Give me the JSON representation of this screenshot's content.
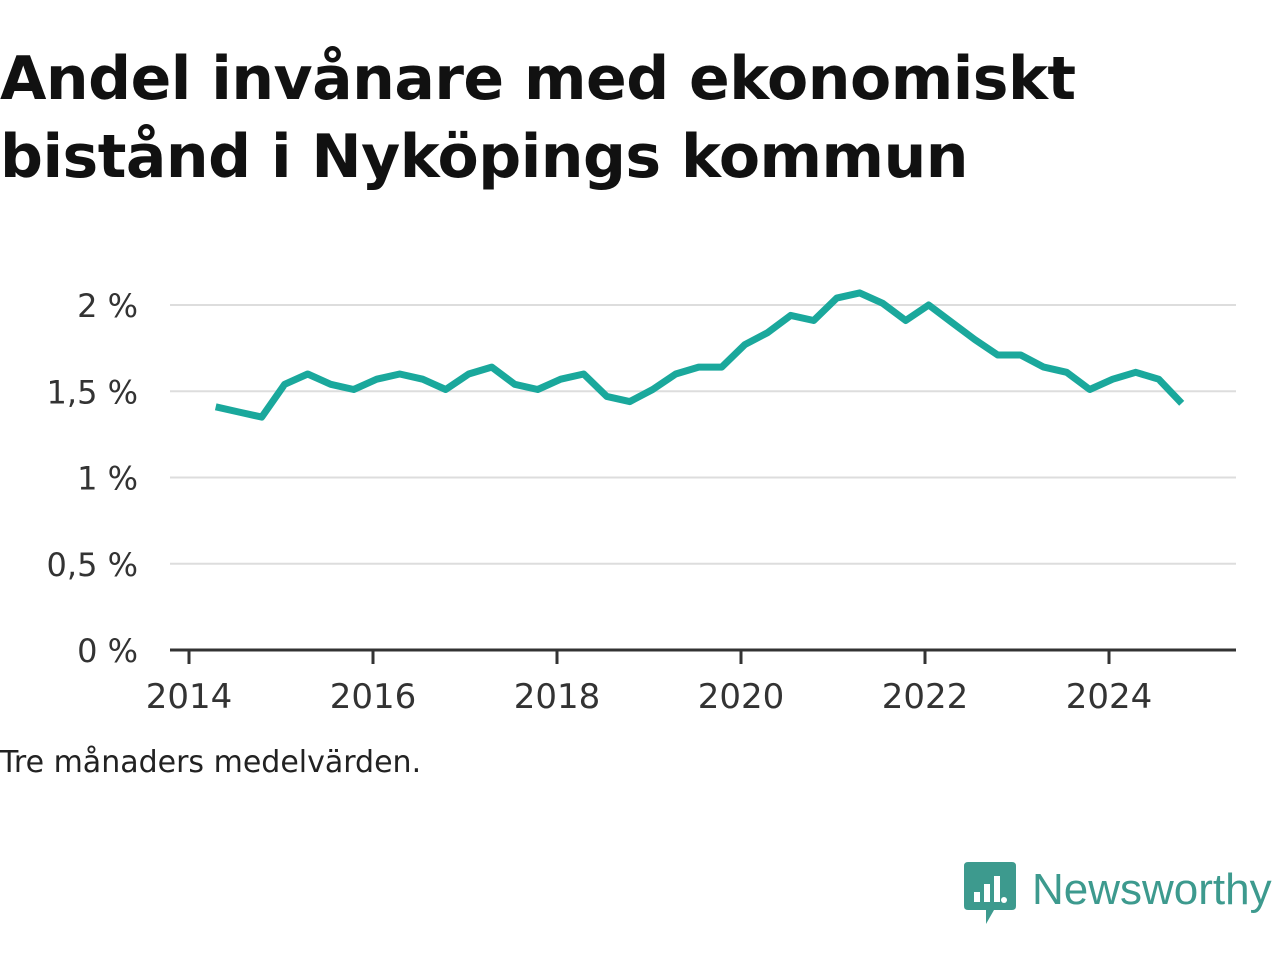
{
  "title": "Andel invånare med ekonomiskt bistånd i Nyköpings kommun",
  "note": "Tre månaders medelvärden.",
  "brand": {
    "name": "Newsworthy",
    "color": "#3d9a8e",
    "icon": "newsworthy-logo-icon"
  },
  "chart_data": {
    "type": "line",
    "title": "Andel invånare med ekonomiskt bistånd i Nyköpings kommun",
    "xlabel": "",
    "ylabel": "",
    "ylim": [
      0,
      2.1
    ],
    "xlim": [
      2013.9,
      2025.7
    ],
    "y_ticks": [
      {
        "value": 0,
        "label": "0 %"
      },
      {
        "value": 0.5,
        "label": "0,5 %"
      },
      {
        "value": 1,
        "label": "1 %"
      },
      {
        "value": 1.5,
        "label": "1,5 %"
      },
      {
        "value": 2,
        "label": "2 %"
      }
    ],
    "x_ticks": [
      {
        "value": 2014,
        "label": "2014"
      },
      {
        "value": 2016,
        "label": "2016"
      },
      {
        "value": 2018,
        "label": "2018"
      },
      {
        "value": 2020,
        "label": "2020"
      },
      {
        "value": 2022,
        "label": "2022"
      },
      {
        "value": 2024,
        "label": "2024"
      }
    ],
    "grid": true,
    "line_color": "#1aa89c",
    "series": [
      {
        "x": [
          2014.29,
          2014.54,
          2014.79,
          2015.04,
          2015.29,
          2015.54,
          2015.79,
          2016.04,
          2016.29,
          2016.54,
          2016.79,
          2017.04,
          2017.29,
          2017.54,
          2017.79,
          2018.04,
          2018.29,
          2018.54,
          2018.79,
          2019.04,
          2019.29,
          2019.54,
          2019.79,
          2020.04,
          2020.29,
          2020.54,
          2020.79,
          2021.04,
          2021.29,
          2021.54,
          2021.79,
          2022.04,
          2022.29,
          2022.54,
          2022.79,
          2023.04,
          2023.29,
          2023.54,
          2023.79,
          2024.04,
          2024.29,
          2024.54,
          2024.79
        ],
        "values": [
          1.41,
          1.38,
          1.35,
          1.54,
          1.6,
          1.54,
          1.51,
          1.57,
          1.6,
          1.57,
          1.51,
          1.6,
          1.64,
          1.54,
          1.51,
          1.57,
          1.6,
          1.47,
          1.44,
          1.51,
          1.6,
          1.64,
          1.64,
          1.77,
          1.84,
          1.94,
          1.91,
          2.04,
          2.07,
          2.01,
          1.91,
          2.0,
          1.9,
          1.8,
          1.71,
          1.71,
          1.64,
          1.61,
          1.51,
          1.57,
          1.61,
          1.57,
          1.43
        ]
      }
    ]
  }
}
